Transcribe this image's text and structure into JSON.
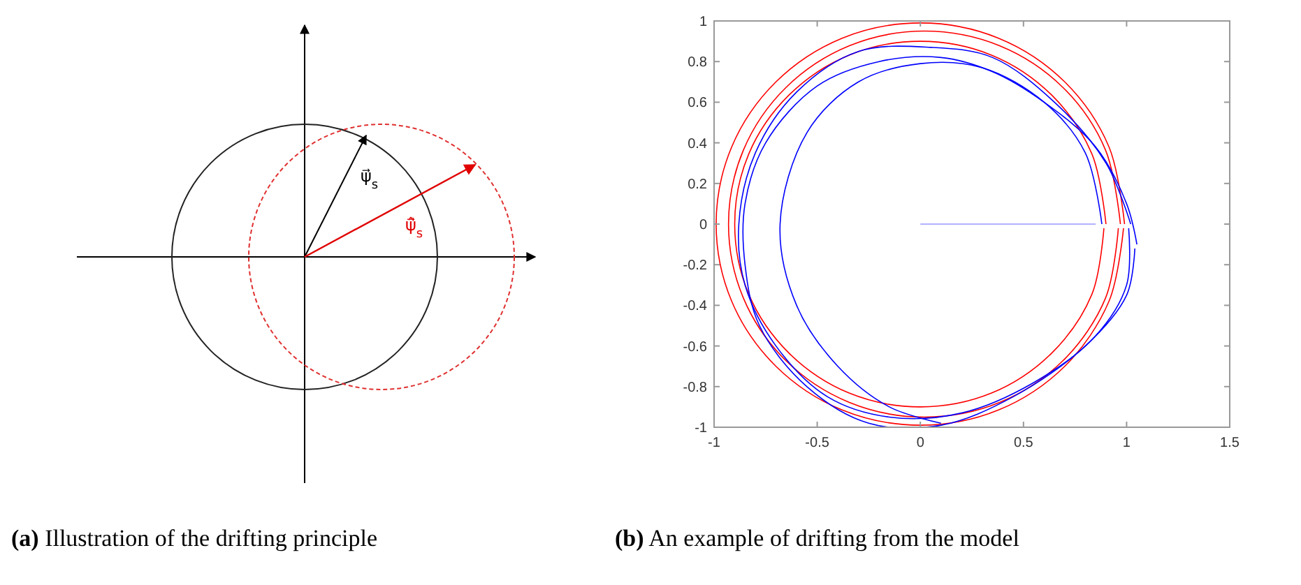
{
  "chart_data": [
    {
      "type": "other",
      "title": "(a) Illustration of the drifting principle",
      "annotations": [
        "ψ⃗$_{s}$",
        "ψ̂⃗$_{s}$"
      ]
    },
    {
      "type": "line",
      "title": "(b) An example of drifting from the model",
      "xlim": [
        -1,
        1.5
      ],
      "xticks": [
        -1,
        -0.5,
        0,
        0.5,
        1,
        1.5
      ],
      "ylim": [
        -1,
        1
      ],
      "yticks": [
        -1,
        -0.8,
        -0.6,
        -0.4,
        -0.2,
        0,
        0.2,
        0.4,
        0.6,
        0.8,
        1
      ],
      "series": [
        {
          "color": "#ff0000",
          "x": [
            0.99,
            0.915,
            0.7,
            0.379,
            0,
            -0.379,
            -0.7,
            -0.915,
            -0.99,
            -0.915,
            -0.7,
            -0.379,
            0,
            0.379,
            0.7,
            0.915,
            0.985
          ],
          "values": [
            0,
            0.379,
            0.7,
            0.915,
            0.99,
            0.915,
            0.7,
            0.379,
            0,
            -0.379,
            -0.7,
            -0.915,
            -0.99,
            -0.915,
            -0.7,
            -0.379,
            -0.02
          ]
        },
        {
          "color": "#ff0000",
          "x": [
            0.97,
            0.898,
            0.692,
            0.384,
            0.02,
            -0.344,
            -0.652,
            -0.858,
            -0.93,
            -0.858,
            -0.652,
            -0.344,
            0.02,
            0.384,
            0.692,
            0.898,
            0.96
          ],
          "values": [
            0,
            0.364,
            0.672,
            0.878,
            0.95,
            0.878,
            0.672,
            0.364,
            0,
            -0.364,
            -0.672,
            -0.878,
            -0.95,
            -0.878,
            -0.672,
            -0.364,
            -0.02
          ]
        },
        {
          "color": "#ff0000",
          "x": [
            0.9,
            0.832,
            0.636,
            0.345,
            0,
            -0.345,
            -0.636,
            -0.832,
            -0.9,
            -0.832,
            -0.636,
            -0.345,
            0,
            0.345,
            0.636,
            0.832,
            0.89
          ],
          "values": [
            0,
            0.345,
            0.636,
            0.832,
            0.9,
            0.832,
            0.636,
            0.345,
            0,
            -0.345,
            -0.636,
            -0.832,
            -0.9,
            -0.832,
            -0.636,
            -0.345,
            -0.02
          ]
        },
        {
          "color": "#9999ff",
          "x": [
            0,
            0.85
          ],
          "values": [
            0,
            0
          ]
        },
        {
          "color": "#0000ff",
          "x": [
            0.88,
            0.8,
            0.6,
            0.3,
            0,
            -0.3,
            -0.55,
            -0.68,
            -0.6,
            -0.4,
            -0.15,
            0.1
          ],
          "values": [
            0,
            0.35,
            0.6,
            0.77,
            0.79,
            0.7,
            0.45,
            0,
            -0.4,
            -0.7,
            -0.9,
            -0.98
          ]
        },
        {
          "color": "#0000ff",
          "x": [
            1.02,
            0.9,
            0.65,
            0.35,
            0.05,
            -0.3,
            -0.6,
            -0.8,
            -0.88,
            -0.85,
            -0.7,
            -0.45,
            -0.15,
            0.2,
            0.55,
            0.85,
            1,
            1.01
          ],
          "values": [
            0,
            0.3,
            0.6,
            0.82,
            0.87,
            0.85,
            0.65,
            0.35,
            0,
            -0.3,
            -0.6,
            -0.85,
            -0.95,
            -0.93,
            -0.78,
            -0.55,
            -0.3,
            -0.02
          ]
        },
        {
          "color": "#0000ff",
          "x": [
            1.05,
            1,
            0.85,
            0.6,
            0.35,
            0.1,
            -0.2,
            -0.5,
            -0.75,
            -0.85,
            -0.85,
            -0.78,
            -0.55,
            -0.25,
            0.1,
            0.45,
            0.8,
            1,
            1.04
          ],
          "values": [
            -0.1,
            0.1,
            0.38,
            0.6,
            0.75,
            0.82,
            0.8,
            0.68,
            0.4,
            0.1,
            -0.2,
            -0.5,
            -0.8,
            -0.98,
            -0.99,
            -0.85,
            -0.6,
            -0.35,
            -0.12
          ]
        }
      ]
    }
  ]
}
